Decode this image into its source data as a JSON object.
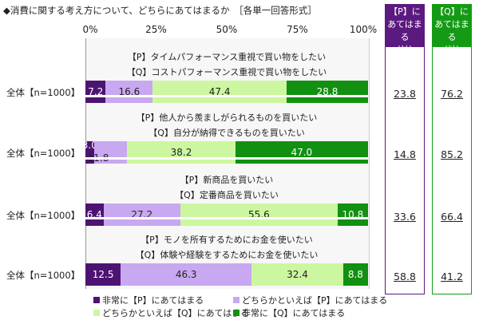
{
  "chart_data": {
    "type": "bar",
    "stacked": true,
    "orientation": "horizontal",
    "title": "◆消費に関する考え方について、どちらにあてはまるか　［各単一回答形式］",
    "x_ticks": [
      "0%",
      "25%",
      "50%",
      "75%",
      "100%"
    ],
    "xlim": [
      0,
      100
    ],
    "rows": [
      {
        "label": "全体【n=1000】",
        "p_text": "【P】タイムパフォーマンス重視で買い物をしたい",
        "q_text": "【Q】コストパフォーマンス重視で買い物をしたい",
        "values": [
          7.2,
          16.6,
          47.4,
          28.8
        ],
        "p_total": "23.8",
        "q_total": "76.2"
      },
      {
        "label": "全体【n=1000】",
        "p_text": "【P】他人から羨ましがられるものを買いたい",
        "q_text": "【Q】自分が納得できるものを買いたい",
        "values": [
          3.0,
          11.8,
          38.2,
          47.0
        ],
        "p_total": "14.8",
        "q_total": "85.2"
      },
      {
        "label": "全体【n=1000】",
        "p_text": "【P】新商品を買いたい",
        "q_text": "【Q】定番商品を買いたい",
        "values": [
          6.4,
          27.2,
          55.6,
          10.8
        ],
        "p_total": "33.6",
        "q_total": "66.4"
      },
      {
        "label": "全体【n=1000】",
        "p_text": "【P】モノを所有するためにお金を使いたい",
        "q_text": "【Q】体験や経験をするためにお金を使いたい",
        "values": [
          12.5,
          46.3,
          32.4,
          8.8
        ],
        "p_total": "58.8",
        "q_total": "41.2"
      }
    ],
    "series": [
      {
        "name": "非常に【P】にあてはまる",
        "color": "#4d1372"
      },
      {
        "name": "どちらかといえば【P】にあてはまる",
        "color": "#c8a8f0"
      },
      {
        "name": "どちらかといえば【Q】にあてはまる",
        "color": "#ccf7a0"
      },
      {
        "name": "非常に【Q】にあてはまる",
        "color": "#119011"
      }
    ],
    "summary": {
      "p_header": [
        "【P】に",
        "あてはまる",
        "（計）"
      ],
      "q_header": [
        "【Q】に",
        "あてはまる",
        "（計）"
      ],
      "p_color": "#5b1a80",
      "q_color": "#159a15"
    },
    "legend_position": "bottom"
  }
}
